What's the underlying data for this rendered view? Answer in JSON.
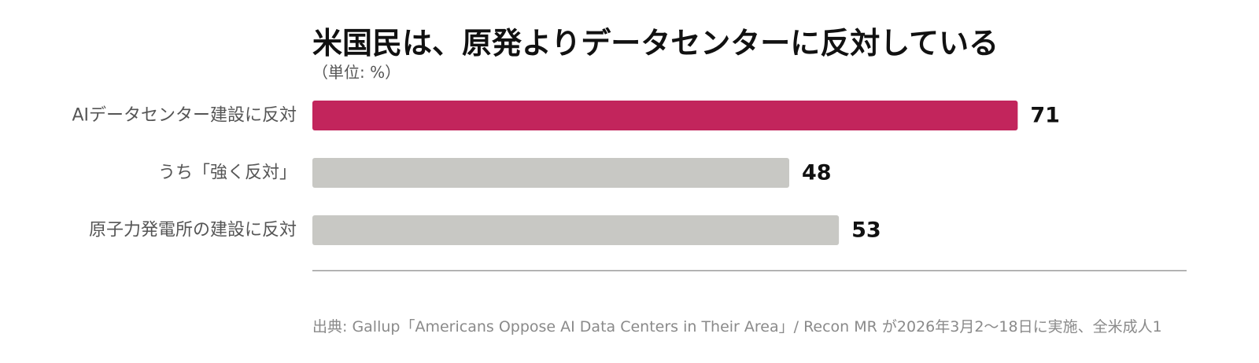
{
  "chart_data": {
    "type": "bar",
    "orientation": "horizontal",
    "title": "米国民は、原発よりデータセンターに反対している",
    "subtitle": "（単位: %）",
    "categories": [
      "AIデータセンター建設に反対",
      "うち「強く反対」",
      "原子力発電所の建設に反対"
    ],
    "values": [
      71,
      48,
      53
    ],
    "colors": [
      "#c2255c",
      "#c8c8c4",
      "#c8c8c4"
    ],
    "xlim": [
      0,
      88
    ],
    "grid": false,
    "legend": "none"
  },
  "source": "出典: Gallup「Americans Oppose AI Data Centers in Their Area」/ Recon MR が2026年3月2〜18日に実施、全米成人1"
}
